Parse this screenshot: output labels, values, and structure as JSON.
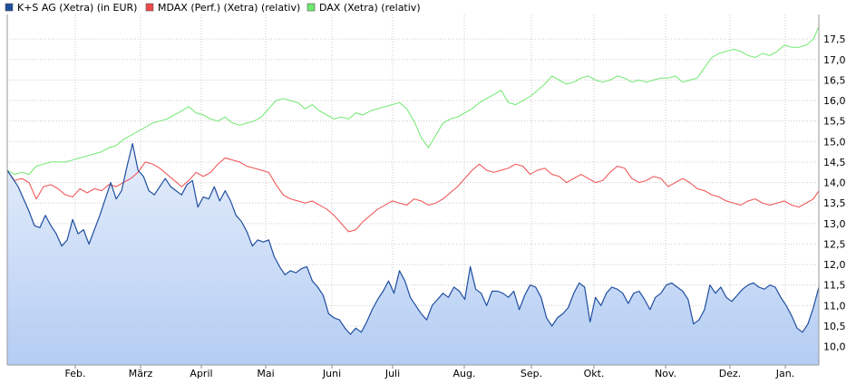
{
  "chart_data": {
    "type": "line",
    "title": "",
    "xlabel": "",
    "ylabel": "",
    "y_axis_position": "right",
    "ylim": [
      9.55,
      18.1
    ],
    "yticks": [
      "10,0",
      "10,5",
      "11,0",
      "11,5",
      "12,0",
      "12,5",
      "13,0",
      "13,5",
      "14,0",
      "14,5",
      "15,0",
      "15,5",
      "16,0",
      "16,5",
      "17,0",
      "17,5"
    ],
    "ytick_values": [
      10.0,
      10.5,
      11.0,
      11.5,
      12.0,
      12.5,
      13.0,
      13.5,
      14.0,
      14.5,
      15.0,
      15.5,
      16.0,
      16.5,
      17.0,
      17.5
    ],
    "x_months": [
      "Feb.",
      "März",
      "April",
      "Mai",
      "Juni",
      "Juli",
      "Aug.",
      "Sep.",
      "Okt.",
      "Nov.",
      "Dez.",
      "Jan."
    ],
    "grid": true,
    "legend_position": "top-left",
    "series": [
      {
        "name": "K+S AG (Xetra) (in EUR)",
        "color": "#1f4e9f",
        "fill": true,
        "x": [
          0,
          6,
          12,
          18,
          24,
          30,
          36,
          42,
          48,
          54,
          60,
          66,
          72,
          78,
          84,
          90,
          96,
          102,
          108,
          114,
          120,
          126,
          132,
          138,
          144,
          150,
          156,
          162,
          168,
          174,
          180,
          186,
          192,
          198,
          204,
          210,
          216,
          222,
          228,
          234,
          240,
          246,
          252,
          258,
          264,
          270,
          276,
          282,
          288,
          294,
          300,
          306,
          312,
          318,
          324,
          330,
          336,
          342,
          348,
          354,
          360,
          366,
          372,
          378,
          384,
          390,
          396,
          402,
          408,
          414,
          420,
          426,
          432,
          438,
          444,
          450,
          456,
          462,
          468,
          474,
          480,
          486,
          492,
          498,
          504,
          510,
          516,
          522,
          528,
          534,
          540,
          546,
          552,
          558,
          564,
          570,
          576,
          582,
          588,
          594,
          600,
          606,
          612,
          618,
          624,
          630,
          636,
          642,
          648,
          654,
          660,
          666,
          672,
          678,
          684,
          690,
          696,
          702,
          708,
          714,
          720,
          726,
          732,
          738,
          744,
          750,
          756,
          762,
          768,
          774,
          780,
          786,
          792,
          798,
          804,
          810,
          816,
          822,
          828,
          834,
          840,
          846,
          852,
          858,
          864,
          870,
          876,
          882,
          888,
          894
        ],
        "values": [
          14.3,
          14.1,
          13.9,
          13.6,
          13.3,
          12.95,
          12.9,
          13.2,
          12.95,
          12.75,
          12.45,
          12.6,
          13.1,
          12.75,
          12.85,
          12.5,
          12.85,
          13.2,
          13.6,
          14.0,
          13.6,
          13.8,
          14.4,
          14.95,
          14.3,
          14.15,
          13.8,
          13.7,
          13.9,
          14.1,
          13.9,
          13.8,
          13.7,
          13.95,
          14.05,
          13.4,
          13.65,
          13.6,
          13.9,
          13.55,
          13.8,
          13.55,
          13.2,
          13.05,
          12.8,
          12.45,
          12.6,
          12.55,
          12.6,
          12.2,
          11.95,
          11.75,
          11.85,
          11.8,
          11.9,
          11.95,
          11.6,
          11.45,
          11.25,
          10.8,
          10.7,
          10.65,
          10.45,
          10.3,
          10.45,
          10.35,
          10.6,
          10.9,
          11.15,
          11.35,
          11.6,
          11.3,
          11.85,
          11.6,
          11.2,
          11.0,
          10.8,
          10.65,
          11.0,
          11.15,
          11.3,
          11.2,
          11.45,
          11.35,
          11.15,
          11.95,
          11.4,
          11.3,
          11.0,
          11.35,
          11.35,
          11.3,
          11.2,
          11.35,
          10.9,
          11.25,
          11.5,
          11.45,
          11.2,
          10.7,
          10.5,
          10.7,
          10.8,
          10.95,
          11.3,
          11.55,
          11.45,
          10.6,
          11.2,
          11.0,
          11.3,
          11.45,
          11.4,
          11.3,
          11.05,
          11.3,
          11.35,
          11.15,
          10.9,
          11.2,
          11.3,
          11.5,
          11.55,
          11.45,
          11.35,
          11.15,
          10.55,
          10.65,
          10.9,
          11.5,
          11.3,
          11.45,
          11.2,
          11.1,
          11.25,
          11.4,
          11.5,
          11.55,
          11.45,
          11.4,
          11.5,
          11.45,
          11.2,
          11.0,
          10.75,
          10.45,
          10.35,
          10.55,
          10.95,
          11.45
        ]
      },
      {
        "name": "MDAX (Perf.) (Xetra) (relativ)",
        "color": "#ee4a4a",
        "fill": false,
        "x": [
          0,
          8,
          16,
          24,
          32,
          40,
          48,
          56,
          64,
          72,
          80,
          88,
          96,
          104,
          112,
          120,
          128,
          136,
          144,
          152,
          160,
          168,
          176,
          184,
          192,
          200,
          208,
          216,
          224,
          232,
          240,
          248,
          256,
          264,
          272,
          280,
          288,
          296,
          304,
          312,
          320,
          328,
          336,
          344,
          352,
          360,
          368,
          376,
          384,
          392,
          400,
          408,
          416,
          424,
          432,
          440,
          448,
          456,
          464,
          472,
          480,
          488,
          496,
          504,
          512,
          520,
          528,
          536,
          544,
          552,
          560,
          568,
          576,
          584,
          592,
          600,
          608,
          616,
          624,
          632,
          640,
          648,
          656,
          664,
          672,
          680,
          688,
          696,
          704,
          712,
          720,
          728,
          736,
          744,
          752,
          760,
          768,
          776,
          784,
          792,
          800,
          808,
          816,
          824,
          832,
          840,
          848,
          856,
          864,
          872,
          880,
          888,
          894
        ],
        "values": [
          14.3,
          14.05,
          14.1,
          14.0,
          13.6,
          13.9,
          13.95,
          13.85,
          13.7,
          13.65,
          13.85,
          13.75,
          13.85,
          13.8,
          13.95,
          13.9,
          14.0,
          14.1,
          14.25,
          14.5,
          14.45,
          14.35,
          14.2,
          14.05,
          13.9,
          14.05,
          14.25,
          14.15,
          14.25,
          14.45,
          14.6,
          14.55,
          14.5,
          14.4,
          14.35,
          14.3,
          14.25,
          13.95,
          13.7,
          13.6,
          13.55,
          13.5,
          13.55,
          13.45,
          13.35,
          13.2,
          13.0,
          12.8,
          12.85,
          13.05,
          13.2,
          13.35,
          13.45,
          13.55,
          13.5,
          13.45,
          13.6,
          13.55,
          13.45,
          13.5,
          13.6,
          13.75,
          13.9,
          14.1,
          14.3,
          14.45,
          14.3,
          14.25,
          14.3,
          14.35,
          14.45,
          14.4,
          14.2,
          14.3,
          14.35,
          14.2,
          14.15,
          14.0,
          14.1,
          14.2,
          14.1,
          14.0,
          14.05,
          14.25,
          14.4,
          14.35,
          14.1,
          14.0,
          14.05,
          14.15,
          14.1,
          13.9,
          14.0,
          14.1,
          14.0,
          13.85,
          13.8,
          13.7,
          13.65,
          13.55,
          13.5,
          13.45,
          13.55,
          13.6,
          13.5,
          13.45,
          13.5,
          13.55,
          13.45,
          13.4,
          13.5,
          13.6,
          13.8
        ]
      },
      {
        "name": "DAX (Xetra) (relativ)",
        "color": "#6ee86e",
        "fill": false,
        "x": [
          0,
          8,
          16,
          24,
          32,
          40,
          48,
          56,
          64,
          72,
          80,
          88,
          96,
          104,
          112,
          120,
          128,
          136,
          144,
          152,
          160,
          168,
          176,
          184,
          192,
          200,
          208,
          216,
          224,
          232,
          240,
          248,
          256,
          264,
          272,
          280,
          288,
          296,
          304,
          312,
          320,
          328,
          336,
          344,
          352,
          360,
          368,
          376,
          384,
          392,
          400,
          408,
          416,
          424,
          432,
          440,
          448,
          456,
          464,
          472,
          480,
          488,
          496,
          504,
          512,
          520,
          528,
          536,
          544,
          552,
          560,
          568,
          576,
          584,
          592,
          600,
          608,
          616,
          624,
          632,
          640,
          648,
          656,
          664,
          672,
          680,
          688,
          696,
          704,
          712,
          720,
          728,
          736,
          744,
          752,
          760,
          768,
          776,
          784,
          792,
          800,
          808,
          816,
          824,
          832,
          840,
          848,
          856,
          864,
          872,
          880,
          888,
          894
        ],
        "values": [
          14.3,
          14.2,
          14.25,
          14.2,
          14.4,
          14.45,
          14.5,
          14.5,
          14.5,
          14.55,
          14.6,
          14.65,
          14.7,
          14.75,
          14.85,
          14.9,
          15.05,
          15.15,
          15.25,
          15.35,
          15.45,
          15.5,
          15.55,
          15.65,
          15.75,
          15.85,
          15.7,
          15.65,
          15.55,
          15.5,
          15.6,
          15.45,
          15.4,
          15.45,
          15.5,
          15.6,
          15.8,
          16.0,
          16.05,
          16.0,
          15.95,
          15.8,
          15.9,
          15.75,
          15.65,
          15.55,
          15.6,
          15.55,
          15.7,
          15.65,
          15.75,
          15.8,
          15.85,
          15.9,
          15.95,
          15.8,
          15.5,
          15.1,
          14.85,
          15.15,
          15.45,
          15.55,
          15.6,
          15.7,
          15.8,
          15.95,
          16.05,
          16.15,
          16.25,
          15.95,
          15.9,
          16.0,
          16.1,
          16.25,
          16.4,
          16.6,
          16.5,
          16.4,
          16.45,
          16.55,
          16.6,
          16.5,
          16.45,
          16.5,
          16.6,
          16.55,
          16.45,
          16.5,
          16.45,
          16.5,
          16.55,
          16.55,
          16.6,
          16.45,
          16.5,
          16.55,
          16.8,
          17.05,
          17.15,
          17.2,
          17.25,
          17.2,
          17.1,
          17.05,
          17.15,
          17.1,
          17.2,
          17.35,
          17.3,
          17.3,
          17.35,
          17.5,
          17.8
        ]
      }
    ]
  }
}
